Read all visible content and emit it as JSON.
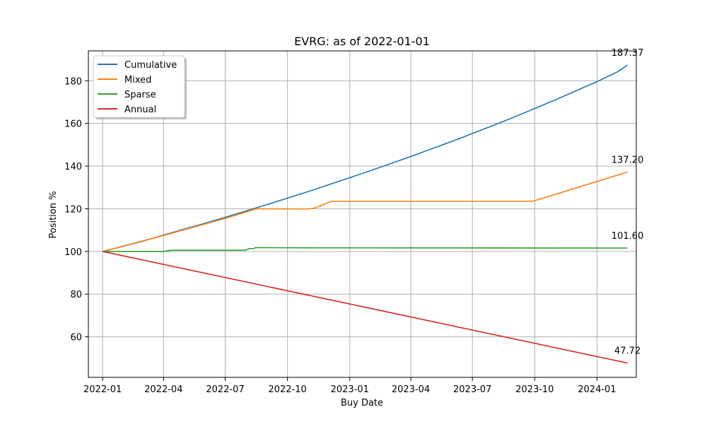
{
  "chart_data": {
    "type": "line",
    "title": "EVRG: as of 2022-01-01",
    "xlabel": "Buy Date",
    "ylabel": "Position %",
    "x_type": "date",
    "xlim": [
      "2021-12-11",
      "2024-02-28"
    ],
    "ylim": [
      41,
      194
    ],
    "x_ticks": [
      "2022-01",
      "2022-04",
      "2022-07",
      "2022-10",
      "2023-01",
      "2023-04",
      "2023-07",
      "2023-10",
      "2024-01"
    ],
    "y_ticks": [
      60,
      80,
      100,
      120,
      140,
      160,
      180
    ],
    "grid": true,
    "legend": "top-left",
    "series": [
      {
        "name": "Cumulative",
        "color": "#1f77b4",
        "end_label": "187.37",
        "points": [
          [
            "2022-01-01",
            100.0
          ],
          [
            "2022-02-01",
            102.5
          ],
          [
            "2022-03-01",
            104.8
          ],
          [
            "2022-04-01",
            107.7
          ],
          [
            "2022-05-01",
            110.4
          ],
          [
            "2022-06-01",
            113.2
          ],
          [
            "2022-07-01",
            116.0
          ],
          [
            "2022-08-01",
            119.0
          ],
          [
            "2022-09-01",
            122.0
          ],
          [
            "2022-10-01",
            125.0
          ],
          [
            "2022-11-01",
            128.1
          ],
          [
            "2022-12-01",
            131.3
          ],
          [
            "2023-01-01",
            134.6
          ],
          [
            "2023-02-01",
            137.9
          ],
          [
            "2023-03-01",
            141.0
          ],
          [
            "2023-04-01",
            144.5
          ],
          [
            "2023-05-01",
            148.0
          ],
          [
            "2023-06-01",
            151.6
          ],
          [
            "2023-07-01",
            155.3
          ],
          [
            "2023-08-01",
            159.1
          ],
          [
            "2023-09-01",
            163.0
          ],
          [
            "2023-10-01",
            167.0
          ],
          [
            "2023-11-01",
            171.1
          ],
          [
            "2023-12-01",
            175.3
          ],
          [
            "2024-01-01",
            179.6
          ],
          [
            "2024-02-01",
            184.3
          ],
          [
            "2024-02-15",
            187.37
          ]
        ]
      },
      {
        "name": "Mixed",
        "color": "#ff7f0e",
        "end_label": "137.20",
        "points": [
          [
            "2022-01-01",
            100.0
          ],
          [
            "2022-04-01",
            107.5
          ],
          [
            "2022-07-01",
            115.5
          ],
          [
            "2022-08-01",
            118.5
          ],
          [
            "2022-08-15",
            120.0
          ],
          [
            "2022-10-31",
            119.9
          ],
          [
            "2022-11-10",
            120.3
          ],
          [
            "2022-12-05",
            123.5
          ],
          [
            "2023-09-28",
            123.5
          ],
          [
            "2024-02-15",
            137.2
          ]
        ]
      },
      {
        "name": "Sparse",
        "color": "#2ca02c",
        "end_label": "101.60",
        "points": [
          [
            "2022-01-01",
            100.0
          ],
          [
            "2022-03-31",
            100.0
          ],
          [
            "2022-04-15",
            100.6
          ],
          [
            "2022-07-31",
            100.6
          ],
          [
            "2022-08-05",
            101.3
          ],
          [
            "2022-08-12",
            101.4
          ],
          [
            "2022-08-15",
            101.8
          ],
          [
            "2022-10-31",
            101.7
          ],
          [
            "2024-02-15",
            101.6
          ]
        ]
      },
      {
        "name": "Annual",
        "color": "#d62728",
        "end_label": "47.72",
        "points": [
          [
            "2022-01-01",
            100.0
          ],
          [
            "2024-02-15",
            47.72
          ]
        ]
      }
    ]
  }
}
